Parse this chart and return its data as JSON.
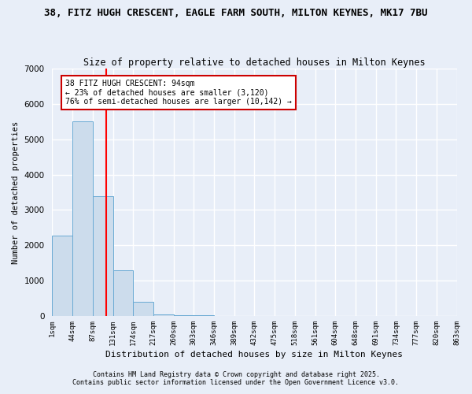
{
  "title": "38, FITZ HUGH CRESCENT, EAGLE FARM SOUTH, MILTON KEYNES, MK17 7BU",
  "subtitle": "Size of property relative to detached houses in Milton Keynes",
  "xlabel": "Distribution of detached houses by size in Milton Keynes",
  "ylabel": "Number of detached properties",
  "bar_values": [
    2280,
    5500,
    3400,
    1300,
    400,
    50,
    20,
    10,
    5,
    3,
    2,
    2,
    2,
    1,
    1,
    1,
    1,
    1,
    0,
    0
  ],
  "bar_color": "#ccdcec",
  "bar_edge_color": "#6aaad4",
  "x_labels": [
    "1sqm",
    "44sqm",
    "87sqm",
    "131sqm",
    "174sqm",
    "217sqm",
    "260sqm",
    "303sqm",
    "346sqm",
    "389sqm",
    "432sqm",
    "475sqm",
    "518sqm",
    "561sqm",
    "604sqm",
    "648sqm",
    "691sqm",
    "734sqm",
    "777sqm",
    "820sqm",
    "863sqm"
  ],
  "ylim": [
    0,
    7000
  ],
  "yticks": [
    0,
    1000,
    2000,
    3000,
    4000,
    5000,
    6000,
    7000
  ],
  "red_line_x": 2.15,
  "annotation_text": "38 FITZ HUGH CRESCENT: 94sqm\n← 23% of detached houses are smaller (3,120)\n76% of semi-detached houses are larger (10,142) →",
  "annotation_box_color": "#ffffff",
  "annotation_box_edge": "#cc0000",
  "footer_line1": "Contains HM Land Registry data © Crown copyright and database right 2025.",
  "footer_line2": "Contains public sector information licensed under the Open Government Licence v3.0.",
  "background_color": "#e8eef8",
  "grid_color": "#ffffff"
}
